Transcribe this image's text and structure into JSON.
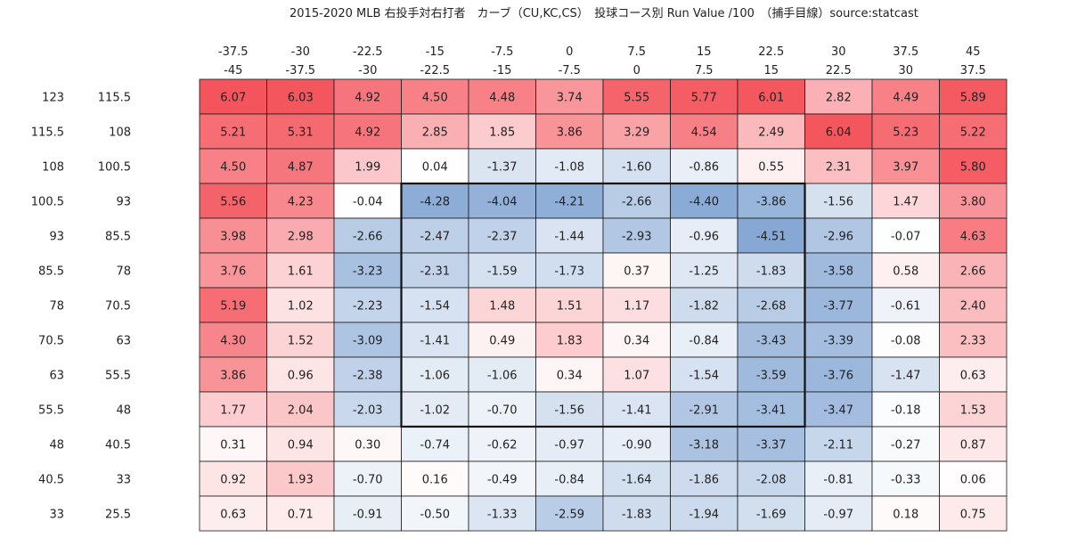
{
  "chart_data": {
    "type": "heatmap",
    "title": "2015-2020 MLB 右投手対右打者　カーブ（CU,KC,CS）　投球コース別 Run Value /100　（捕手目線）source:statcast",
    "columns": [
      {
        "top": "-37.5",
        "bottom": "-45"
      },
      {
        "top": "-30",
        "bottom": "-37.5"
      },
      {
        "top": "-22.5",
        "bottom": "-30"
      },
      {
        "top": "-15",
        "bottom": "-22.5"
      },
      {
        "top": "-7.5",
        "bottom": "-15"
      },
      {
        "top": "0",
        "bottom": "-7.5"
      },
      {
        "top": "7.5",
        "bottom": "0"
      },
      {
        "top": "15",
        "bottom": "7.5"
      },
      {
        "top": "22.5",
        "bottom": "15"
      },
      {
        "top": "30",
        "bottom": "22.5"
      },
      {
        "top": "37.5",
        "bottom": "30"
      },
      {
        "top": "45",
        "bottom": "37.5"
      }
    ],
    "rows": [
      {
        "high": "123",
        "low": "115.5"
      },
      {
        "high": "115.5",
        "low": "108"
      },
      {
        "high": "108",
        "low": "100.5"
      },
      {
        "high": "100.5",
        "low": "93"
      },
      {
        "high": "93",
        "low": "85.5"
      },
      {
        "high": "85.5",
        "low": "78"
      },
      {
        "high": "78",
        "low": "70.5"
      },
      {
        "high": "70.5",
        "low": "63"
      },
      {
        "high": "63",
        "low": "55.5"
      },
      {
        "high": "55.5",
        "low": "48"
      },
      {
        "high": "48",
        "low": "40.5"
      },
      {
        "high": "40.5",
        "low": "33"
      },
      {
        "high": "33",
        "low": "25.5"
      }
    ],
    "values": [
      [
        "6.07",
        "6.03",
        "4.92",
        "4.50",
        "4.48",
        "3.74",
        "5.55",
        "5.77",
        "6.01",
        "2.82",
        "4.49",
        "5.89"
      ],
      [
        "5.21",
        "5.31",
        "4.92",
        "2.85",
        "1.85",
        "3.86",
        "3.29",
        "4.54",
        "2.49",
        "6.04",
        "5.23",
        "5.22"
      ],
      [
        "4.50",
        "4.87",
        "1.99",
        "0.04",
        "-1.37",
        "-1.08",
        "-1.60",
        "-0.86",
        "0.55",
        "2.31",
        "3.97",
        "5.80"
      ],
      [
        "5.56",
        "4.23",
        "-0.04",
        "-4.28",
        "-4.04",
        "-4.21",
        "-2.66",
        "-4.40",
        "-3.86",
        "-1.56",
        "1.47",
        "3.80"
      ],
      [
        "3.98",
        "2.98",
        "-2.66",
        "-2.47",
        "-2.37",
        "-1.44",
        "-2.93",
        "-0.96",
        "-4.51",
        "-2.96",
        "-0.07",
        "4.63"
      ],
      [
        "3.76",
        "1.61",
        "-3.23",
        "-2.31",
        "-1.59",
        "-1.73",
        "0.37",
        "-1.25",
        "-1.83",
        "-3.58",
        "0.58",
        "2.66"
      ],
      [
        "5.19",
        "1.02",
        "-2.23",
        "-1.54",
        "1.48",
        "1.51",
        "1.17",
        "-1.82",
        "-2.68",
        "-3.77",
        "-0.61",
        "2.40"
      ],
      [
        "4.30",
        "1.52",
        "-3.09",
        "-1.41",
        "0.49",
        "1.83",
        "0.34",
        "-0.84",
        "-3.43",
        "-3.39",
        "-0.08",
        "2.33"
      ],
      [
        "3.86",
        "0.96",
        "-2.38",
        "-1.06",
        "-1.06",
        "0.34",
        "1.07",
        "-1.54",
        "-3.59",
        "-3.76",
        "-1.47",
        "0.63"
      ],
      [
        "1.77",
        "2.04",
        "-2.03",
        "-1.02",
        "-0.70",
        "-1.56",
        "-1.41",
        "-2.91",
        "-3.41",
        "-3.47",
        "-0.18",
        "1.53"
      ],
      [
        "0.31",
        "0.94",
        "0.30",
        "-0.74",
        "-0.62",
        "-0.97",
        "-0.90",
        "-3.18",
        "-3.37",
        "-2.11",
        "-0.27",
        "0.87"
      ],
      [
        "0.92",
        "1.93",
        "-0.70",
        "0.16",
        "-0.49",
        "-0.84",
        "-1.64",
        "-1.86",
        "-2.08",
        "-0.81",
        "-0.33",
        "0.06"
      ],
      [
        "0.63",
        "0.71",
        "-0.91",
        "-0.50",
        "-1.33",
        "-2.59",
        "-1.83",
        "-1.94",
        "-1.69",
        "-0.97",
        "0.18",
        "0.75"
      ]
    ],
    "strike_zone": {
      "col_start": 3,
      "col_end": 8,
      "row_start": 3,
      "row_end": 9
    },
    "color_scale": {
      "positive": "#f4545c",
      "negative": "#5d8ac6",
      "neutral": "#ffffff",
      "abs_max": 6.1
    }
  }
}
